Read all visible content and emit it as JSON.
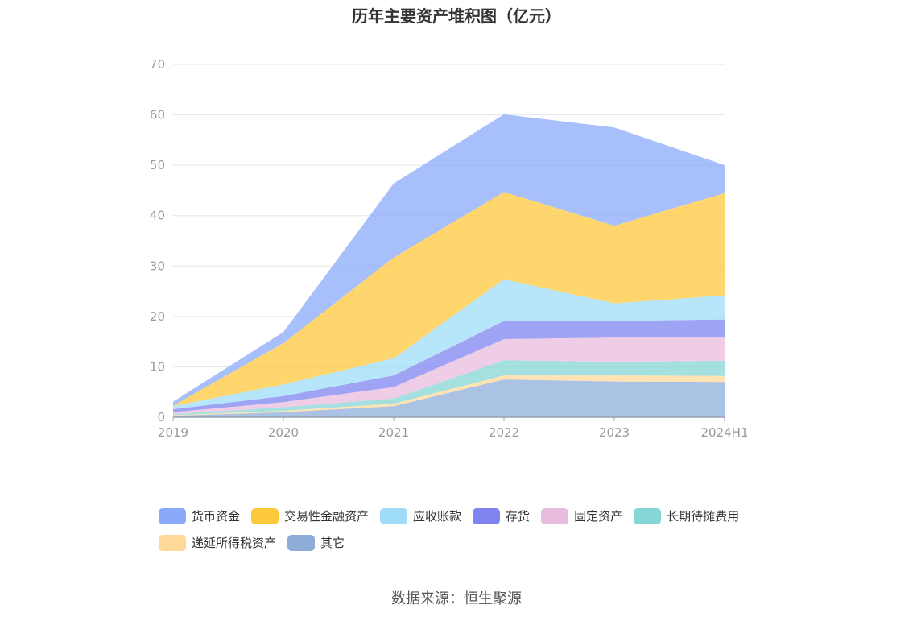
{
  "chart_data": {
    "type": "area",
    "stacked": true,
    "title": "历年主要资产堆积图（亿元）",
    "x": [
      "2019",
      "2020",
      "2021",
      "2022",
      "2023",
      "2024H1"
    ],
    "ylim": [
      0,
      70
    ],
    "yticks": [
      0,
      10,
      20,
      30,
      40,
      50,
      60,
      70
    ],
    "grid": true,
    "legend_position": "bottom",
    "series": [
      {
        "name": "其它",
        "color": "#8eaed9",
        "values": [
          0.3,
          1.0,
          2.2,
          7.5,
          7.1,
          7.0
        ]
      },
      {
        "name": "递延所得税资产",
        "color": "#ffd99a",
        "values": [
          0.1,
          0.3,
          0.5,
          0.8,
          1.2,
          1.2
        ]
      },
      {
        "name": "长期待摊费用",
        "color": "#85d6d6",
        "values": [
          0.2,
          0.7,
          1.0,
          3.0,
          2.7,
          3.0
        ]
      },
      {
        "name": "固定资产",
        "color": "#e9bcdf",
        "values": [
          0.4,
          1.0,
          2.3,
          4.2,
          4.8,
          4.6
        ]
      },
      {
        "name": "存货",
        "color": "#7f84f0",
        "values": [
          0.6,
          1.2,
          2.3,
          3.6,
          3.3,
          3.6
        ]
      },
      {
        "name": "应收账款",
        "color": "#9fdcf7",
        "values": [
          0.6,
          2.3,
          3.4,
          8.3,
          3.5,
          4.8
        ]
      },
      {
        "name": "交易性金融资产",
        "color": "#fdc83c",
        "values": [
          0.1,
          8.2,
          20.0,
          17.3,
          15.4,
          20.3
        ]
      },
      {
        "name": "货币资金",
        "color": "#8aaaf9",
        "values": [
          0.8,
          2.2,
          14.7,
          15.4,
          19.5,
          5.5
        ]
      }
    ],
    "legend_order": [
      "货币资金",
      "交易性金融资产",
      "应收账款",
      "存货",
      "固定资产",
      "长期待摊费用",
      "递延所得税资产",
      "其它"
    ]
  },
  "source": "数据来源：恒生聚源"
}
